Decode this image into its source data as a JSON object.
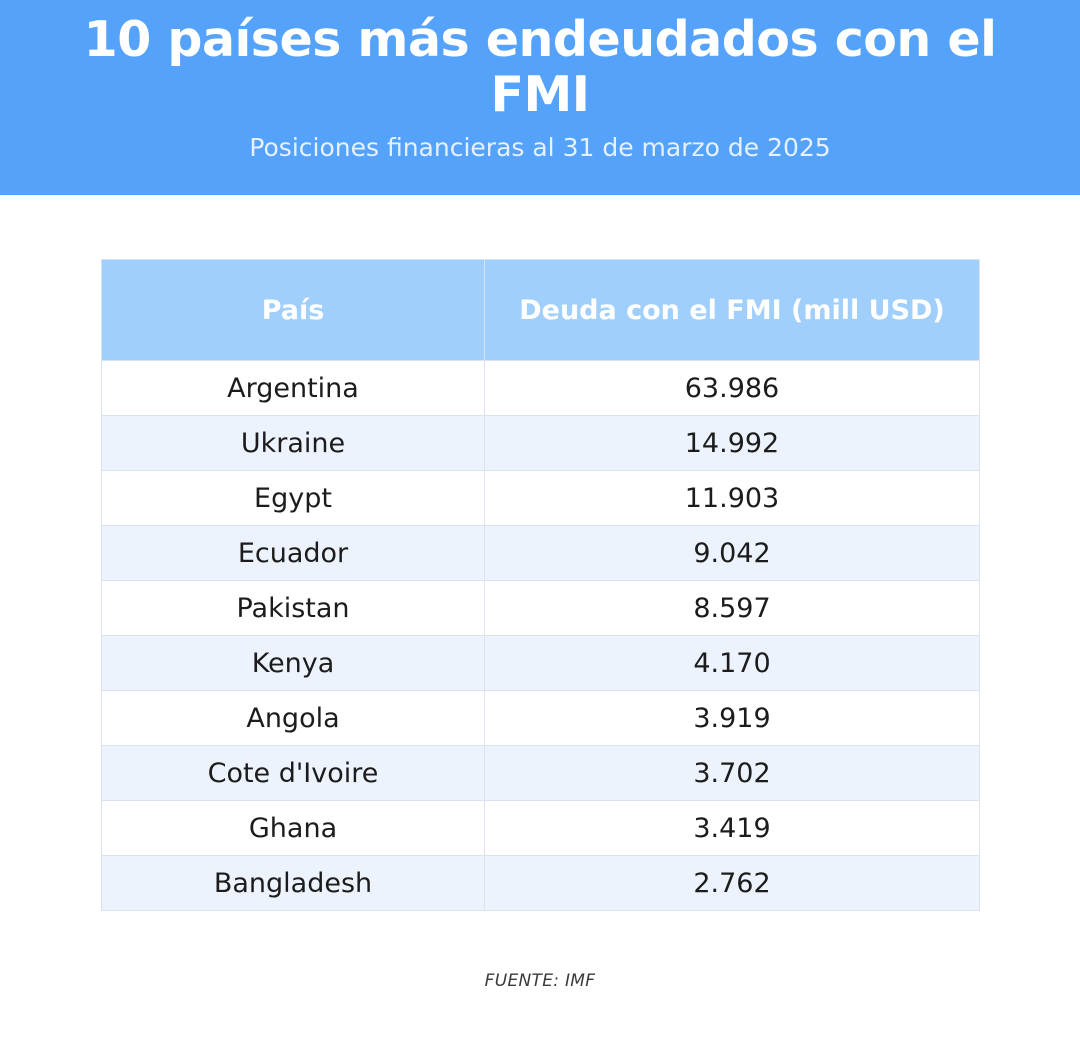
{
  "header": {
    "title": "10 países más endeudados con el FMI",
    "subtitle": "Posiciones financieras al 31 de marzo de 2025"
  },
  "colors": {
    "header_background": "#55a2fb",
    "table_header_background": "#a1cffc",
    "row_alt_background": "#ecf3fd"
  },
  "chart_data": {
    "type": "table",
    "title": "10 países más endeudados con el FMI",
    "subtitle": "Posiciones financieras al 31 de marzo de 2025",
    "columns": [
      "País",
      "Deuda con el FMI (mill USD)"
    ],
    "rows": [
      [
        "Argentina",
        "63.986"
      ],
      [
        "Ukraine",
        "14.992"
      ],
      [
        "Egypt",
        "11.903"
      ],
      [
        "Ecuador",
        "9.042"
      ],
      [
        "Pakistan",
        "8.597"
      ],
      [
        "Kenya",
        "4.170"
      ],
      [
        "Angola",
        "3.919"
      ],
      [
        "Cote d'Ivoire",
        "3.702"
      ],
      [
        "Ghana",
        "3.419"
      ],
      [
        "Bangladesh",
        "2.762"
      ]
    ],
    "source": "FUENTE: IMF"
  }
}
